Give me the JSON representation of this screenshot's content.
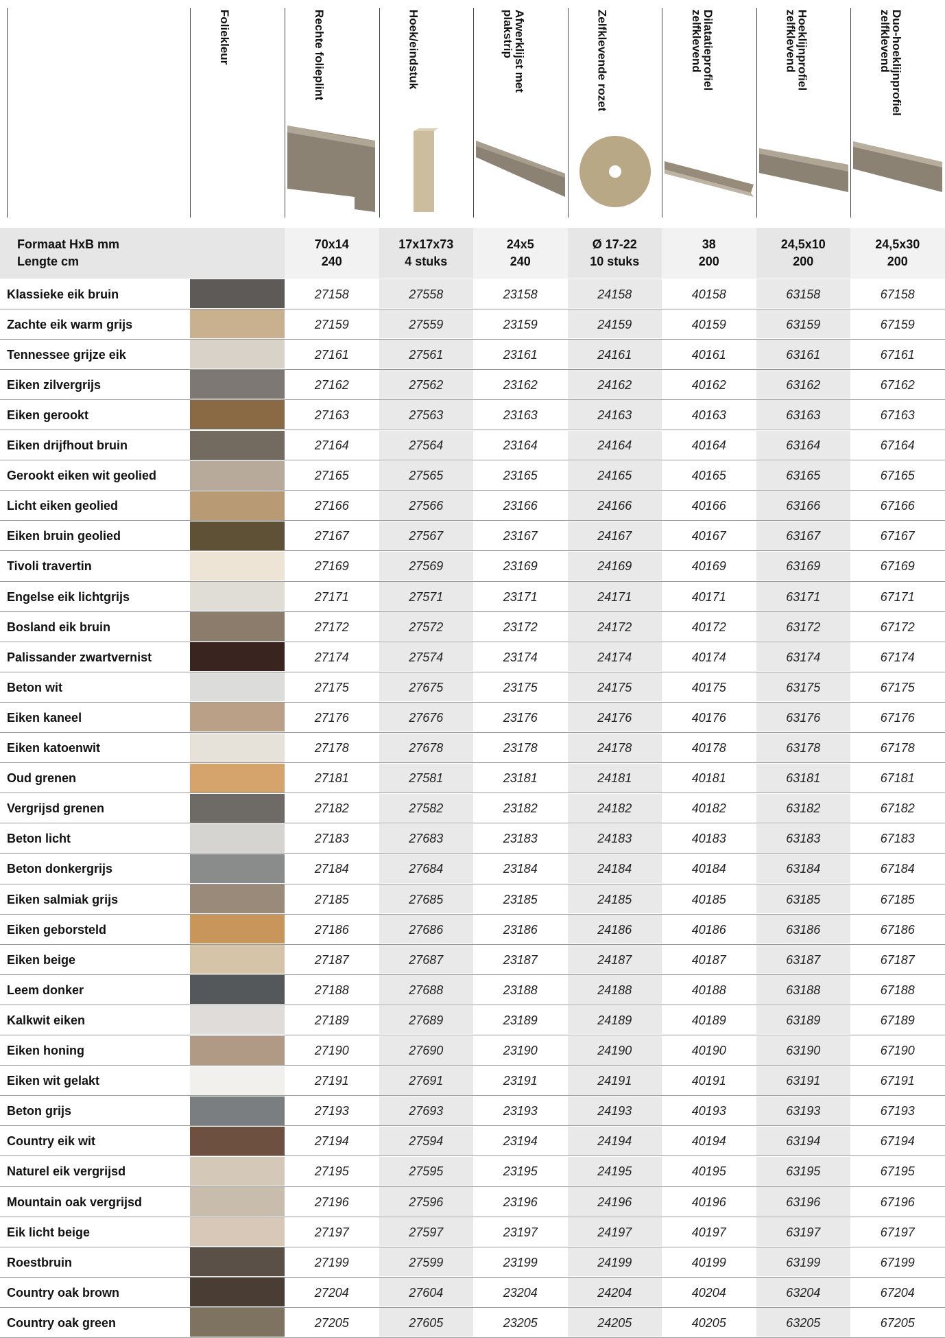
{
  "header": {
    "columns": [
      "Foliekleur",
      "Rechte folieplint",
      "Hoek/eindstuk",
      "Afwerklijst met\nplakstrip",
      "Zelfklevende rozet",
      "Dilatatieprofiel\nzelfklevend",
      "Hoeklijnprofiel\nzelfklevend",
      "Duo-hoeklijnprofiel\nzelfklevend"
    ]
  },
  "size_row": {
    "label": [
      "Formaat HxB mm",
      "Lengte cm"
    ],
    "values": [
      [
        "70x14",
        "240"
      ],
      [
        "17x17x73",
        "4 stuks"
      ],
      [
        "24x5",
        "240"
      ],
      [
        "Ø 17-22",
        "10 stuks"
      ],
      [
        "38",
        "200"
      ],
      [
        "24,5x10",
        "200"
      ],
      [
        "24,5x30",
        "200"
      ]
    ]
  },
  "rows": [
    {
      "name": "Klassieke eik bruin",
      "color": "#5e5a57",
      "codes": [
        27158,
        27558,
        23158,
        24158,
        40158,
        63158,
        67158
      ]
    },
    {
      "name": "Zachte eik warm grijs",
      "color": "#c9b08f",
      "codes": [
        27159,
        27559,
        23159,
        24159,
        40159,
        63159,
        67159
      ]
    },
    {
      "name": "Tennessee grijze eik",
      "color": "#d8d2c8",
      "codes": [
        27161,
        27561,
        23161,
        24161,
        40161,
        63161,
        67161
      ]
    },
    {
      "name": "Eiken zilvergrijs",
      "color": "#7d7874",
      "codes": [
        27162,
        27562,
        23162,
        24162,
        40162,
        63162,
        67162
      ]
    },
    {
      "name": "Eiken gerookt",
      "color": "#8a6a45",
      "codes": [
        27163,
        27563,
        23163,
        24163,
        40163,
        63163,
        67163
      ]
    },
    {
      "name": "Eiken drijfhout bruin",
      "color": "#736a60",
      "codes": [
        27164,
        27564,
        23164,
        24164,
        40164,
        63164,
        67164
      ]
    },
    {
      "name": "Gerookt eiken wit geolied",
      "color": "#b8aa9a",
      "codes": [
        27165,
        27565,
        23165,
        24165,
        40165,
        63165,
        67165
      ]
    },
    {
      "name": "Licht eiken geolied",
      "color": "#b89a74",
      "codes": [
        27166,
        27566,
        23166,
        24166,
        40166,
        63166,
        67166
      ]
    },
    {
      "name": "Eiken bruin geolied",
      "color": "#5f5136",
      "codes": [
        27167,
        27567,
        23167,
        24167,
        40167,
        63167,
        67167
      ]
    },
    {
      "name": "Tivoli travertin",
      "color": "#ede4d6",
      "codes": [
        27169,
        27569,
        23169,
        24169,
        40169,
        63169,
        67169
      ]
    },
    {
      "name": "Engelse eik lichtgrijs",
      "color": "#e0dcd6",
      "codes": [
        27171,
        27571,
        23171,
        24171,
        40171,
        63171,
        67171
      ]
    },
    {
      "name": "Bosland eik bruin",
      "color": "#8c7c6c",
      "codes": [
        27172,
        27572,
        23172,
        24172,
        40172,
        63172,
        67172
      ]
    },
    {
      "name": "Palissander zwartvernist",
      "color": "#3a2420",
      "codes": [
        27174,
        27574,
        23174,
        24174,
        40174,
        63174,
        67174
      ]
    },
    {
      "name": "Beton wit",
      "color": "#dcdcda",
      "codes": [
        27175,
        27675,
        23175,
        24175,
        40175,
        63175,
        67175
      ]
    },
    {
      "name": "Eiken kaneel",
      "color": "#bba088",
      "codes": [
        27176,
        27676,
        23176,
        24176,
        40176,
        63176,
        67176
      ]
    },
    {
      "name": "Eiken katoenwit",
      "color": "#e6e2da",
      "codes": [
        27178,
        27678,
        23178,
        24178,
        40178,
        63178,
        67178
      ]
    },
    {
      "name": "Oud grenen",
      "color": "#d4a46c",
      "codes": [
        27181,
        27581,
        23181,
        24181,
        40181,
        63181,
        67181
      ]
    },
    {
      "name": "Vergrijsd grenen",
      "color": "#6e6a66",
      "codes": [
        27182,
        27582,
        23182,
        24182,
        40182,
        63182,
        67182
      ]
    },
    {
      "name": "Beton licht",
      "color": "#d6d4d0",
      "codes": [
        27183,
        27683,
        23183,
        24183,
        40183,
        63183,
        67183
      ]
    },
    {
      "name": "Beton donkergrijs",
      "color": "#8a8c8c",
      "codes": [
        27184,
        27684,
        23184,
        24184,
        40184,
        63184,
        67184
      ]
    },
    {
      "name": "Eiken salmiak grijs",
      "color": "#9a8a7a",
      "codes": [
        27185,
        27685,
        23185,
        24185,
        40185,
        63185,
        67185
      ]
    },
    {
      "name": "Eiken geborsteld",
      "color": "#c8955a",
      "codes": [
        27186,
        27686,
        23186,
        24186,
        40186,
        63186,
        67186
      ]
    },
    {
      "name": "Eiken beige",
      "color": "#d6c4a8",
      "codes": [
        27187,
        27687,
        23187,
        24187,
        40187,
        63187,
        67187
      ]
    },
    {
      "name": "Leem donker",
      "color": "#55585a",
      "codes": [
        27188,
        27688,
        23188,
        24188,
        40188,
        63188,
        67188
      ]
    },
    {
      "name": "Kalkwit eiken",
      "color": "#e0dcda",
      "codes": [
        27189,
        27689,
        23189,
        24189,
        40189,
        63189,
        67189
      ]
    },
    {
      "name": "Eiken honing",
      "color": "#b09a86",
      "codes": [
        27190,
        27690,
        23190,
        24190,
        40190,
        63190,
        67190
      ]
    },
    {
      "name": "Eiken wit gelakt",
      "color": "#f2f0ec",
      "codes": [
        27191,
        27691,
        23191,
        24191,
        40191,
        63191,
        67191
      ]
    },
    {
      "name": "Beton grijs",
      "color": "#7a7e80",
      "codes": [
        27193,
        27693,
        23193,
        24193,
        40193,
        63193,
        67193
      ]
    },
    {
      "name": "Country eik wit",
      "color": "#6e5040",
      "codes": [
        27194,
        27594,
        23194,
        24194,
        40194,
        63194,
        67194
      ]
    },
    {
      "name": "Naturel eik vergrijsd",
      "color": "#d4c8b8",
      "codes": [
        27195,
        27595,
        23195,
        24195,
        40195,
        63195,
        67195
      ]
    },
    {
      "name": "Mountain oak vergrijsd",
      "color": "#c8bcac",
      "codes": [
        27196,
        27596,
        23196,
        24196,
        40196,
        63196,
        67196
      ]
    },
    {
      "name": "Eik licht beige",
      "color": "#d8c8b8",
      "codes": [
        27197,
        27597,
        23197,
        24197,
        40197,
        63197,
        67197
      ]
    },
    {
      "name": "Roestbruin",
      "color": "#5a5048",
      "codes": [
        27199,
        27599,
        23199,
        24199,
        40199,
        63199,
        67199
      ]
    },
    {
      "name": "Country oak brown",
      "color": "#4a3e34",
      "codes": [
        27204,
        27604,
        23204,
        24204,
        40204,
        63204,
        67204
      ]
    },
    {
      "name": "Country oak green",
      "color": "#7e7260",
      "codes": [
        27205,
        27605,
        23205,
        24205,
        40205,
        63205,
        67205
      ]
    }
  ]
}
